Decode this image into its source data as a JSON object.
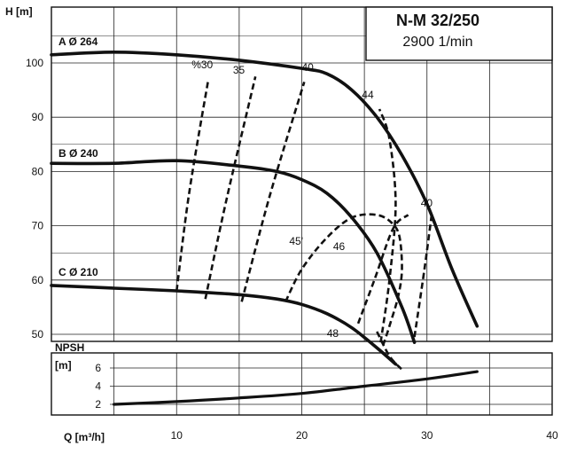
{
  "chart_data": {
    "type": "line",
    "title": "N-M 32/250",
    "subtitle": "2900 1/min",
    "xlabel": "Q [m³/h]",
    "ylabel": "H [m]",
    "npsh_label_1": "NPSH",
    "npsh_label_2": "[m]",
    "xlim": [
      0,
      40
    ],
    "ylim": [
      45,
      105
    ],
    "npsh_ylim": [
      0,
      7.5
    ],
    "grid": true,
    "x_ticks": [
      10,
      20,
      30,
      40
    ],
    "x_tick_labels": [
      "10",
      "20",
      "30",
      "40"
    ],
    "y_ticks": [
      50,
      60,
      70,
      80,
      90,
      100
    ],
    "y_tick_labels": [
      "50",
      "60",
      "70",
      "80",
      "90",
      "100"
    ],
    "npsh_ticks": [
      2,
      4,
      6
    ],
    "npsh_tick_labels": [
      "2",
      "4",
      "6"
    ],
    "series": [
      {
        "name": "A Ø 264",
        "x": [
          0,
          5,
          10,
          15,
          20,
          22,
          24,
          26,
          28,
          30,
          32,
          34
        ],
        "y": [
          101.5,
          102,
          101.5,
          100.5,
          99,
          98,
          95,
          90,
          83,
          74,
          62,
          51.5
        ]
      },
      {
        "name": "B Ø 240",
        "x": [
          0,
          5,
          10,
          15,
          18,
          20,
          22,
          24,
          26,
          28,
          29
        ],
        "y": [
          81.5,
          81.5,
          82,
          81,
          80,
          78.5,
          76,
          71.5,
          65,
          55,
          48.5
        ]
      },
      {
        "name": "C Ø 210",
        "x": [
          0,
          5,
          10,
          15,
          18,
          20,
          22,
          24,
          26,
          27.5
        ],
        "y": [
          59,
          58.5,
          58,
          57.3,
          56.5,
          55.5,
          53.8,
          51.2,
          47.5,
          44.5
        ]
      }
    ],
    "efficiency_lines": [
      {
        "label": "%30",
        "x": [
          10,
          11,
          12.5
        ],
        "y": [
          58,
          76,
          96.5
        ]
      },
      {
        "label": "35",
        "x": [
          12.3,
          14,
          16.3
        ],
        "y": [
          56.5,
          75,
          97.5
        ]
      },
      {
        "label": "40",
        "x": [
          15.2,
          17.5,
          20.2
        ],
        "y": [
          56,
          76,
          96.5
        ]
      },
      {
        "label": "44",
        "x": [
          26.3,
          27,
          27.5,
          27,
          26.2
        ],
        "y": [
          48.5,
          60,
          74,
          86,
          91.5
        ]
      },
      {
        "label": "40",
        "x": [
          29,
          29.8,
          30.4
        ],
        "y": [
          49.5,
          62,
          72.5
        ]
      },
      {
        "label": "45",
        "x": [
          18.7,
          20,
          22,
          24,
          26,
          27.2,
          27.8,
          28,
          27.7,
          27,
          26.5
        ],
        "y": [
          56,
          62,
          67.8,
          71.5,
          72,
          70.5,
          68,
          62,
          57,
          51.5,
          48
        ]
      },
      {
        "label": "46",
        "x": [
          24.5,
          25.8,
          27.3,
          28.5
        ],
        "y": [
          52,
          60,
          69.5,
          72
        ]
      },
      {
        "label": "48",
        "x": [
          26,
          27,
          28
        ],
        "y": [
          50.5,
          46,
          43.5
        ]
      }
    ],
    "efficiency_label_positions": [
      {
        "text": "%30",
        "x": 11.2,
        "y": 99
      },
      {
        "text": "35",
        "x": 14.5,
        "y": 98
      },
      {
        "text": "40",
        "x": 20,
        "y": 98.5
      },
      {
        "text": "44",
        "x": 24.8,
        "y": 93.5
      },
      {
        "text": "40",
        "x": 29.5,
        "y": 73.5
      },
      {
        "text": "45'",
        "x": 19,
        "y": 66.5
      },
      {
        "text": "46",
        "x": 22.5,
        "y": 65.5
      },
      {
        "text": "48",
        "x": 22,
        "y": 49.5
      }
    ],
    "npsh": {
      "x": [
        5,
        10,
        15,
        20,
        25,
        30,
        34
      ],
      "y": [
        2,
        2.3,
        2.7,
        3.2,
        4,
        4.8,
        5.6
      ]
    }
  }
}
